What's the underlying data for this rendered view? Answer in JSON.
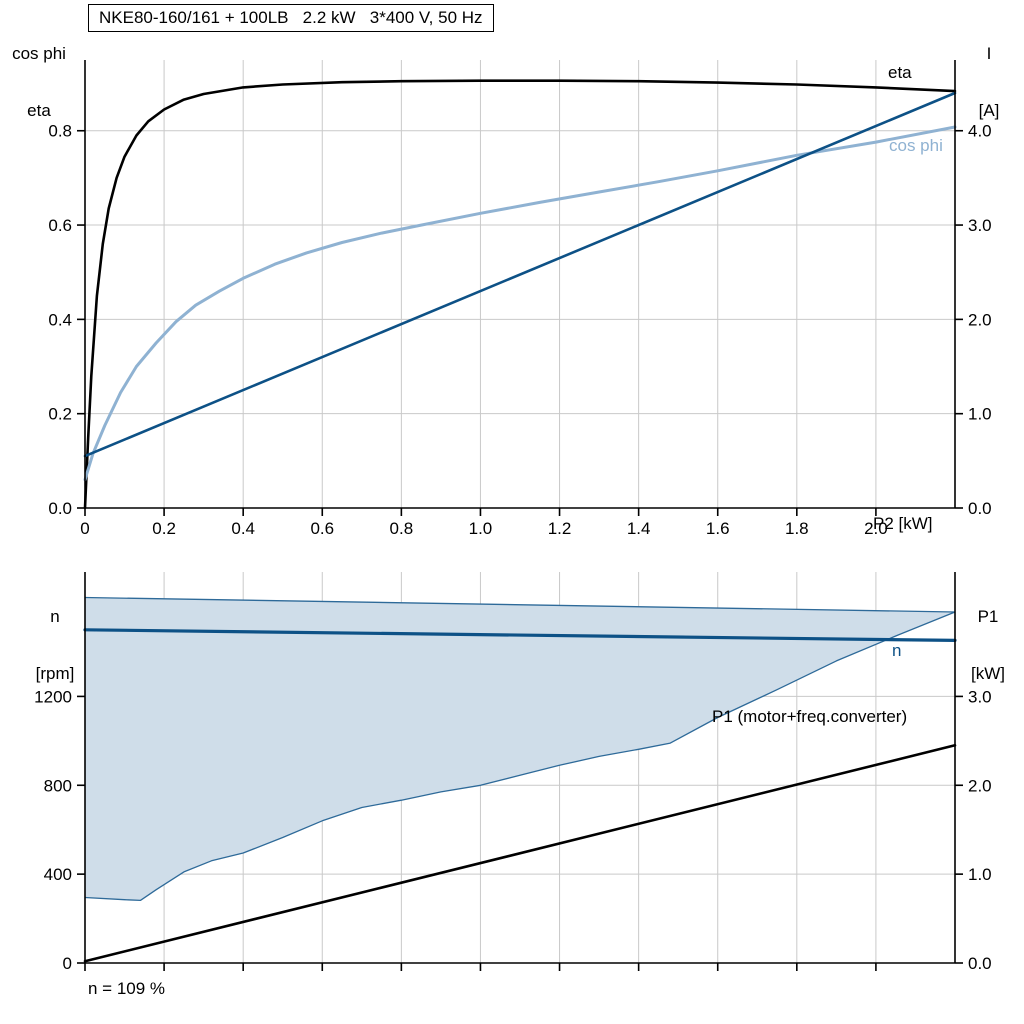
{
  "chart_data": [
    {
      "type": "line",
      "title": "NKE80-160/161 + 100LB   2.2 kW   3*400 V, 50 Hz",
      "xlabel": "P2 [kW]",
      "xlim": [
        0,
        2.2
      ],
      "grid": true,
      "grid_color": "#c9c9c9",
      "grid_x": [
        0.2,
        0.4,
        0.6,
        0.8,
        1.0,
        1.2,
        1.4,
        1.6,
        1.8,
        2.0
      ],
      "x_ticks": [
        {
          "v": 0,
          "t": "0"
        },
        {
          "v": 0.2,
          "t": "0.2"
        },
        {
          "v": 0.4,
          "t": "0.4"
        },
        {
          "v": 0.6,
          "t": "0.6"
        },
        {
          "v": 0.8,
          "t": "0.8"
        },
        {
          "v": 1.0,
          "t": "1.0"
        },
        {
          "v": 1.2,
          "t": "1.2"
        },
        {
          "v": 1.4,
          "t": "1.4"
        },
        {
          "v": 1.6,
          "t": "1.6"
        },
        {
          "v": 1.8,
          "t": "1.8"
        },
        {
          "v": 2.0,
          "t": "2.0"
        }
      ],
      "left_axis": {
        "title_lines": [
          "cos phi",
          "eta"
        ],
        "lim": [
          0,
          0.95
        ],
        "ticks": [
          {
            "v": 0.0,
            "t": "0.0"
          },
          {
            "v": 0.2,
            "t": "0.2"
          },
          {
            "v": 0.4,
            "t": "0.4"
          },
          {
            "v": 0.6,
            "t": "0.6"
          },
          {
            "v": 0.8,
            "t": "0.8"
          }
        ]
      },
      "right_axis": {
        "title_lines": [
          "I",
          "[A]"
        ],
        "lim": [
          0,
          4.75
        ],
        "ticks": [
          {
            "v": 0.0,
            "t": "0.0"
          },
          {
            "v": 1.0,
            "t": "1.0"
          },
          {
            "v": 2.0,
            "t": "2.0"
          },
          {
            "v": 3.0,
            "t": "3.0"
          },
          {
            "v": 4.0,
            "t": "4.0"
          }
        ]
      },
      "series": [
        {
          "name": "eta",
          "axis": "left",
          "color": "#000000",
          "width": 2.6,
          "x": [
            0,
            0.008,
            0.016,
            0.03,
            0.045,
            0.06,
            0.08,
            0.1,
            0.13,
            0.16,
            0.2,
            0.25,
            0.3,
            0.4,
            0.5,
            0.65,
            0.8,
            1.0,
            1.2,
            1.4,
            1.6,
            1.8,
            2.0,
            2.2
          ],
          "y": [
            0,
            0.15,
            0.28,
            0.45,
            0.56,
            0.635,
            0.7,
            0.745,
            0.79,
            0.82,
            0.845,
            0.866,
            0.878,
            0.892,
            0.898,
            0.903,
            0.905,
            0.906,
            0.906,
            0.905,
            0.902,
            0.898,
            0.892,
            0.884
          ]
        },
        {
          "name": "cos phi",
          "axis": "left",
          "color": "#8fb2d2",
          "width": 3,
          "x": [
            0,
            0.02,
            0.05,
            0.09,
            0.13,
            0.18,
            0.23,
            0.28,
            0.34,
            0.4,
            0.48,
            0.56,
            0.65,
            0.75,
            0.85,
            1.0,
            1.15,
            1.3,
            1.45,
            1.6,
            1.8,
            2.0,
            2.2
          ],
          "y": [
            0.06,
            0.115,
            0.175,
            0.245,
            0.3,
            0.35,
            0.395,
            0.43,
            0.46,
            0.487,
            0.517,
            0.541,
            0.563,
            0.583,
            0.6,
            0.625,
            0.648,
            0.67,
            0.692,
            0.715,
            0.748,
            0.776,
            0.808
          ]
        },
        {
          "name": "I",
          "axis": "right",
          "color": "#0d5186",
          "width": 2.6,
          "x": [
            0,
            2.2
          ],
          "y": [
            0.55,
            4.4
          ]
        }
      ]
    },
    {
      "type": "line",
      "xlabel": "",
      "xlim": [
        0,
        2.2
      ],
      "grid": true,
      "grid_color": "#c9c9c9",
      "grid_x": [
        0.2,
        0.4,
        0.6,
        0.8,
        1.0,
        1.2,
        1.4,
        1.6,
        1.8,
        2.0
      ],
      "x_ticks": [
        {
          "v": 0,
          "t": ""
        },
        {
          "v": 0.2,
          "t": ""
        },
        {
          "v": 0.4,
          "t": ""
        },
        {
          "v": 0.6,
          "t": ""
        },
        {
          "v": 0.8,
          "t": ""
        },
        {
          "v": 1.0,
          "t": ""
        },
        {
          "v": 1.2,
          "t": ""
        },
        {
          "v": 1.4,
          "t": ""
        },
        {
          "v": 1.6,
          "t": ""
        },
        {
          "v": 1.8,
          "t": ""
        },
        {
          "v": 2.0,
          "t": ""
        }
      ],
      "left_axis": {
        "title_lines": [
          "n",
          "[rpm]"
        ],
        "lim": [
          0,
          1760
        ],
        "ticks": [
          {
            "v": 0,
            "t": "0"
          },
          {
            "v": 400,
            "t": "400"
          },
          {
            "v": 800,
            "t": "800"
          },
          {
            "v": 1200,
            "t": "1200"
          }
        ]
      },
      "right_axis": {
        "title_lines": [
          "P1",
          "[kW]"
        ],
        "lim": [
          0,
          4.4
        ],
        "ticks": [
          {
            "v": 0.0,
            "t": "0.0"
          },
          {
            "v": 1.0,
            "t": "1.0"
          },
          {
            "v": 2.0,
            "t": "2.0"
          },
          {
            "v": 3.0,
            "t": "3.0"
          }
        ]
      },
      "annotation": "n = 109 %",
      "series": [
        {
          "name": "speed-control-range",
          "axis": "left",
          "fill": "#cfdde9",
          "edge_color": "#2e6a99",
          "edge_width": 1.3,
          "band": {
            "upper": {
              "x": [
                0,
                2.2
              ],
              "y": [
                1645,
                1580
              ]
            },
            "lower": {
              "x": [
                0,
                0.1,
                0.14,
                0.18,
                0.25,
                0.32,
                0.4,
                0.5,
                0.6,
                0.7,
                0.8,
                0.9,
                1.0,
                1.1,
                1.2,
                1.3,
                1.4,
                1.48,
                1.6,
                1.75,
                1.9,
                2.05,
                2.2
              ],
              "y": [
                295,
                285,
                282,
                330,
                410,
                460,
                495,
                565,
                640,
                700,
                733,
                770,
                800,
                845,
                890,
                930,
                962,
                990,
                1105,
                1230,
                1360,
                1472,
                1580
              ]
            }
          }
        },
        {
          "name": "n",
          "axis": "left",
          "color": "#0d5186",
          "width": 3.2,
          "x": [
            0,
            2.2
          ],
          "y": [
            1500,
            1452
          ]
        },
        {
          "name": "P1 (motor+freq.converter)",
          "axis": "right",
          "color": "#000000",
          "width": 2.6,
          "x": [
            0,
            2.2
          ],
          "y": [
            0.02,
            2.45
          ]
        }
      ]
    }
  ]
}
